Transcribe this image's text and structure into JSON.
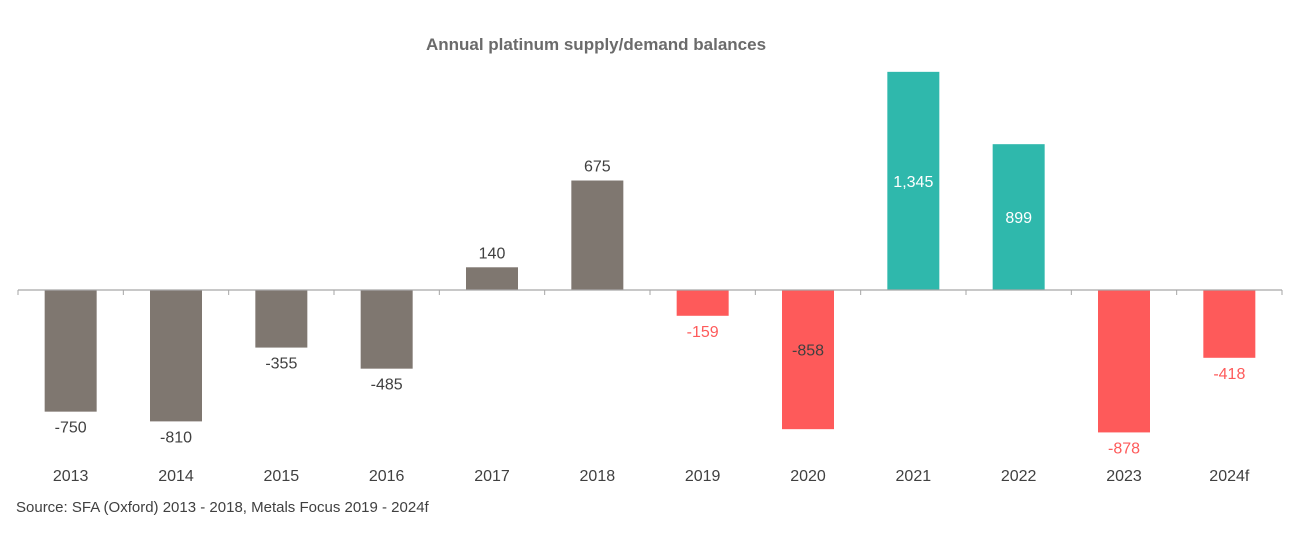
{
  "chart_data": {
    "type": "bar",
    "title": "Annual platinum supply/demand balances",
    "categories": [
      "2013",
      "2014",
      "2015",
      "2016",
      "2017",
      "2018",
      "2019",
      "2020",
      "2021",
      "2022",
      "2023",
      "2024f"
    ],
    "values": [
      -750,
      -810,
      -355,
      -485,
      140,
      675,
      -159,
      -858,
      1345,
      899,
      -878,
      -418
    ],
    "value_labels": [
      "-750",
      "-810",
      "-355",
      "-485",
      "140",
      "675",
      "-159",
      "-858",
      "1,345",
      "899",
      "-878",
      "-418"
    ],
    "bar_colors": [
      "#7f7770",
      "#7f7770",
      "#7f7770",
      "#7f7770",
      "#7f7770",
      "#7f7770",
      "#fe5a5a",
      "#fe5a5a",
      "#2fb8ac",
      "#2fb8ac",
      "#fe5a5a",
      "#fe5a5a"
    ],
    "label_colors": [
      "#404040",
      "#404040",
      "#404040",
      "#404040",
      "#404040",
      "#404040",
      "#fe5a5a",
      "#404040",
      "#ffffff",
      "#ffffff",
      "#fe5a5a",
      "#fe5a5a"
    ],
    "label_inside": [
      false,
      false,
      false,
      false,
      false,
      false,
      false,
      true,
      true,
      true,
      false,
      false
    ],
    "xlabel": "",
    "ylabel": "",
    "ylim": [
      -1000,
      1400
    ],
    "grid": false,
    "legend": "none"
  },
  "source": "Source: SFA (Oxford) 2013 - 2018, Metals Focus 2019 - 2024f"
}
